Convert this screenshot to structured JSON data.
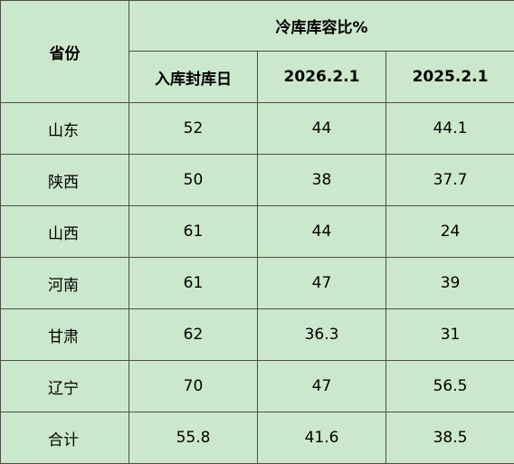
{
  "table": {
    "header_province": "省份",
    "header_group": "冷库库容比%",
    "subheaders": [
      "入库封库日",
      "2026.2.1",
      "2025.2.1"
    ],
    "rows": [
      {
        "province": "山东",
        "seal_day": "52",
        "y2026": "44",
        "y2025": "44.1"
      },
      {
        "province": "陕西",
        "seal_day": "50",
        "y2026": "38",
        "y2025": "37.7"
      },
      {
        "province": "山西",
        "seal_day": "61",
        "y2026": "44",
        "y2025": "24"
      },
      {
        "province": "河南",
        "seal_day": "61",
        "y2026": "47",
        "y2025": "39"
      },
      {
        "province": "甘肃",
        "seal_day": "62",
        "y2026": "36.3",
        "y2025": "31"
      },
      {
        "province": "辽宁",
        "seal_day": "70",
        "y2026": "47",
        "y2025": "56.5"
      },
      {
        "province": "合计",
        "seal_day": "55.8",
        "y2026": "41.6",
        "y2025": "38.5"
      }
    ]
  },
  "colors": {
    "background": "#cce8cc",
    "grid": "#4d4d4d"
  }
}
